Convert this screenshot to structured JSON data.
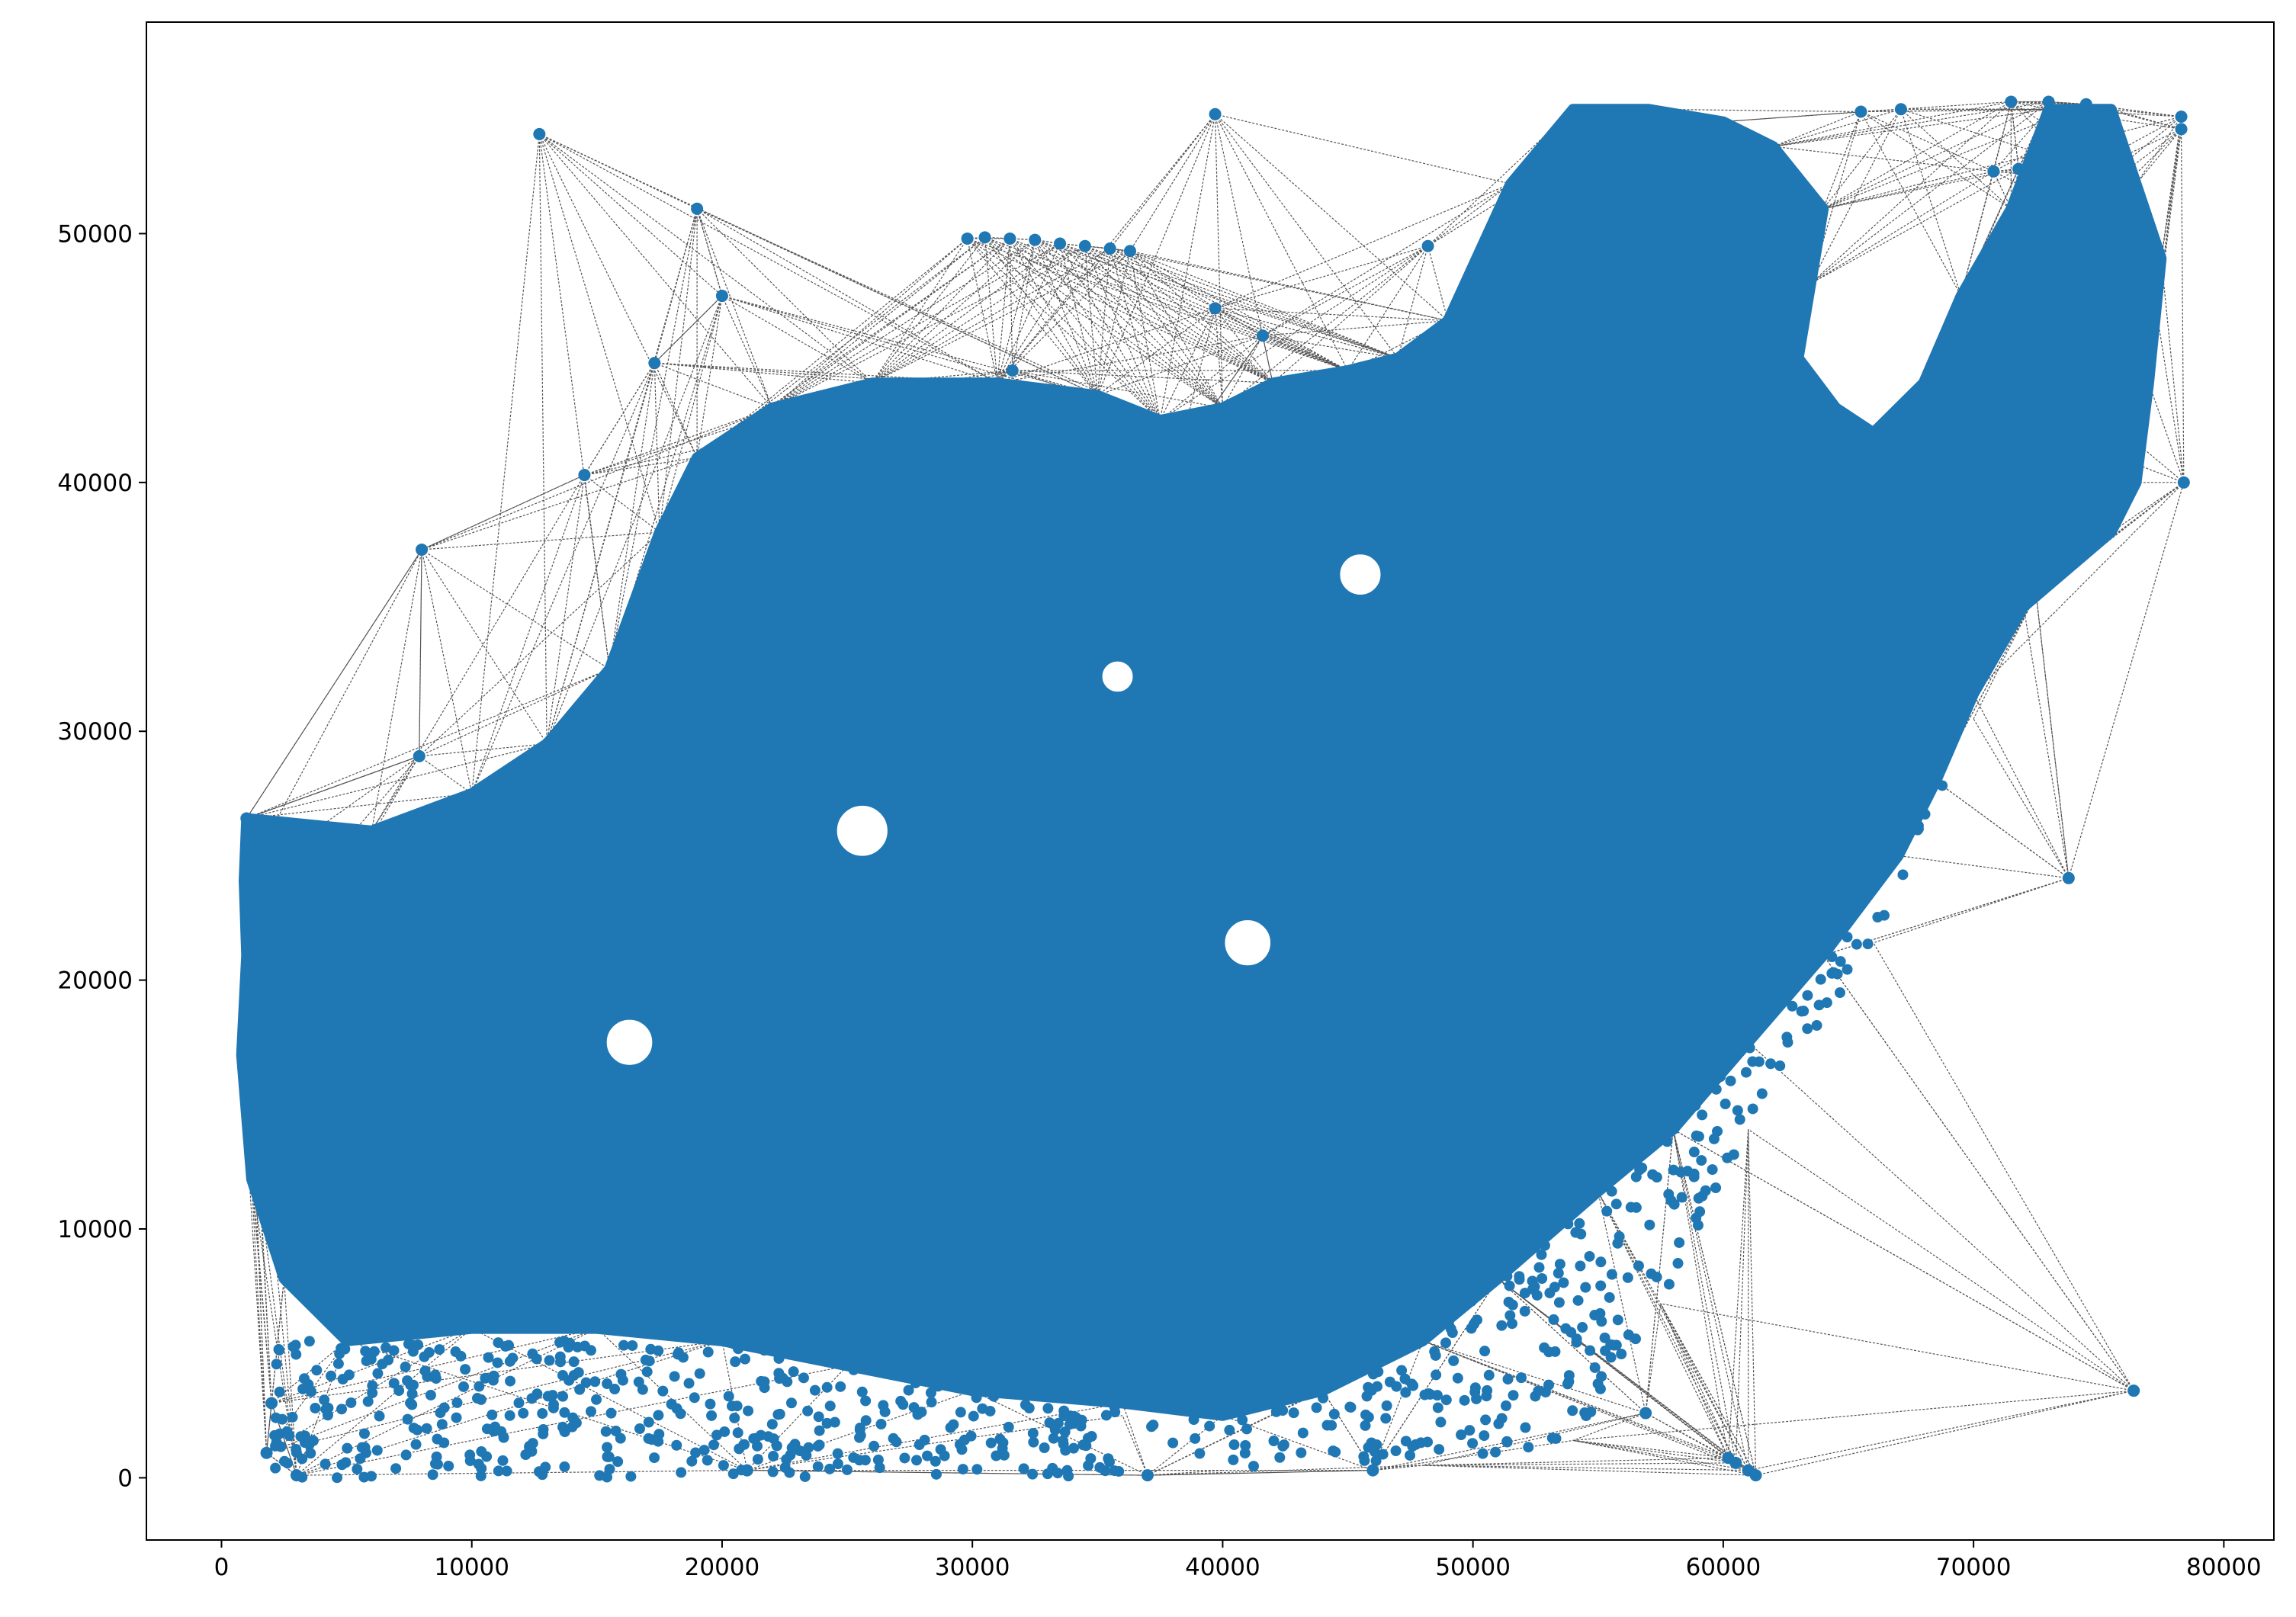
{
  "chart_data": {
    "type": "scatter",
    "title": "",
    "xlabel": "",
    "ylabel": "",
    "xlim": [
      -3000,
      82000
    ],
    "ylim": [
      -2500,
      58500
    ],
    "grid": false,
    "legend": "none",
    "x_ticks": [
      {
        "value": 0,
        "label": "0"
      },
      {
        "value": 10000,
        "label": "10000"
      },
      {
        "value": 20000,
        "label": "20000"
      },
      {
        "value": 30000,
        "label": "30000"
      },
      {
        "value": 40000,
        "label": "40000"
      },
      {
        "value": 50000,
        "label": "50000"
      },
      {
        "value": 60000,
        "label": "60000"
      },
      {
        "value": 70000,
        "label": "70000"
      },
      {
        "value": 80000,
        "label": "80000"
      }
    ],
    "y_ticks": [
      {
        "value": 0,
        "label": "0"
      },
      {
        "value": 10000,
        "label": "10000"
      },
      {
        "value": 20000,
        "label": "20000"
      },
      {
        "value": 30000,
        "label": "30000"
      },
      {
        "value": 40000,
        "label": "40000"
      },
      {
        "value": 50000,
        "label": "50000"
      }
    ],
    "colors": {
      "points": "#1f77b4",
      "edges": "#555555"
    },
    "dense_region": [
      [
        1000,
        26500
      ],
      [
        6000,
        26000
      ],
      [
        10000,
        27500
      ],
      [
        13000,
        29500
      ],
      [
        15500,
        32500
      ],
      [
        17500,
        38000
      ],
      [
        19000,
        41000
      ],
      [
        22000,
        43000
      ],
      [
        26000,
        44000
      ],
      [
        31000,
        44000
      ],
      [
        35000,
        43500
      ],
      [
        37500,
        42500
      ],
      [
        40000,
        43000
      ],
      [
        42000,
        44000
      ],
      [
        45000,
        44500
      ],
      [
        47000,
        45000
      ],
      [
        49000,
        46500
      ],
      [
        51500,
        52000
      ],
      [
        54000,
        55000
      ],
      [
        57000,
        55000
      ],
      [
        60000,
        54500
      ],
      [
        62000,
        53500
      ],
      [
        64000,
        51000
      ],
      [
        63500,
        48000
      ],
      [
        63000,
        45000
      ],
      [
        64500,
        43000
      ],
      [
        66000,
        42000
      ],
      [
        68000,
        44000
      ],
      [
        69500,
        47500
      ],
      [
        71500,
        51000
      ],
      [
        73000,
        55000
      ],
      [
        75500,
        55000
      ],
      [
        76500,
        52000
      ],
      [
        77500,
        49000
      ],
      [
        77000,
        44000
      ],
      [
        76500,
        40000
      ],
      [
        75500,
        38000
      ],
      [
        72000,
        35000
      ],
      [
        70000,
        31500
      ],
      [
        68500,
        28000
      ],
      [
        67000,
        25000
      ],
      [
        64000,
        21000
      ],
      [
        61000,
        17500
      ],
      [
        58000,
        14000
      ],
      [
        55000,
        11500
      ],
      [
        51000,
        8000
      ],
      [
        48000,
        5500
      ],
      [
        44000,
        3500
      ],
      [
        40000,
        2500
      ],
      [
        36000,
        3000
      ],
      [
        30000,
        3500
      ],
      [
        25000,
        4500
      ],
      [
        20000,
        5500
      ],
      [
        15000,
        6000
      ],
      [
        10000,
        6000
      ],
      [
        5000,
        5500
      ],
      [
        2500,
        8000
      ],
      [
        1200,
        12000
      ],
      [
        800,
        17000
      ],
      [
        1000,
        21000
      ],
      [
        900,
        24000
      ]
    ],
    "scatter_band": [
      [
        36000,
        2500
      ],
      [
        44000,
        3500
      ],
      [
        51000,
        8000
      ],
      [
        58000,
        14000
      ],
      [
        64000,
        21000
      ],
      [
        68500,
        28000
      ],
      [
        70000,
        30500
      ],
      [
        66000,
        21500
      ],
      [
        61000,
        14000
      ],
      [
        57500,
        7000
      ],
      [
        54000,
        1500
      ],
      [
        48000,
        500
      ],
      [
        40000,
        300
      ]
    ],
    "gaps": [
      {
        "x": 45500,
        "y": 36300,
        "r": 900
      },
      {
        "x": 25600,
        "y": 26000,
        "r": 1100
      },
      {
        "x": 41000,
        "y": 21500,
        "r": 1000
      },
      {
        "x": 16300,
        "y": 17500,
        "r": 1000
      },
      {
        "x": 35800,
        "y": 32200,
        "r": 700
      }
    ],
    "points": [
      [
        1000,
        26500
      ],
      [
        12700,
        54000
      ],
      [
        19000,
        51000
      ],
      [
        17300,
        44800
      ],
      [
        20000,
        47500
      ],
      [
        14500,
        40300
      ],
      [
        8000,
        37300
      ],
      [
        7900,
        29000
      ],
      [
        39700,
        54800
      ],
      [
        39700,
        47000
      ],
      [
        41600,
        45900
      ],
      [
        48200,
        49500
      ],
      [
        29800,
        49800
      ],
      [
        30500,
        49850
      ],
      [
        31500,
        49800
      ],
      [
        32500,
        49750
      ],
      [
        33500,
        49600
      ],
      [
        34500,
        49500
      ],
      [
        35500,
        49400
      ],
      [
        36300,
        49300
      ],
      [
        31600,
        44500
      ],
      [
        38200,
        41000
      ],
      [
        65500,
        54900
      ],
      [
        67100,
        55000
      ],
      [
        71500,
        55300
      ],
      [
        73000,
        55300
      ],
      [
        74500,
        55200
      ],
      [
        78300,
        54700
      ],
      [
        78300,
        54200
      ],
      [
        78400,
        40000
      ],
      [
        73800,
        24100
      ],
      [
        76400,
        3500
      ],
      [
        56900,
        2600
      ],
      [
        60200,
        800
      ],
      [
        60500,
        600
      ],
      [
        61000,
        300
      ],
      [
        61300,
        100
      ],
      [
        3000,
        100
      ],
      [
        2000,
        3000
      ],
      [
        1800,
        1000
      ],
      [
        21000,
        300
      ],
      [
        37000,
        100
      ],
      [
        46000,
        300
      ],
      [
        70800,
        52500
      ],
      [
        71800,
        52600
      ],
      [
        72500,
        35500
      ]
    ]
  }
}
